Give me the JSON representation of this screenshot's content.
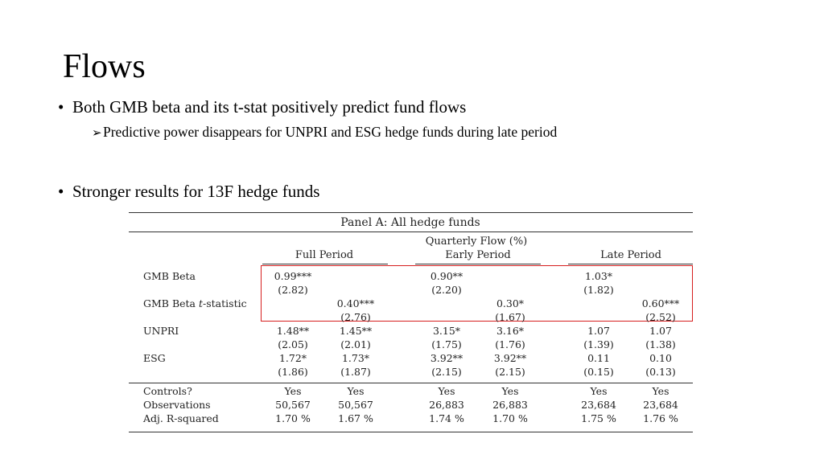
{
  "slide": {
    "title": "Flows",
    "bullets": [
      {
        "text": "Both GMB beta and its t-stat positively predict fund flows",
        "sub": "Predictive power disappears for UNPRI and ESG hedge funds during late period"
      },
      {
        "text": "Stronger results for 13F hedge funds"
      }
    ]
  },
  "table": {
    "panel_title": "Panel A: All hedge funds",
    "dependent_var": "Quarterly Flow (%)",
    "groups": [
      "Full Period",
      "Early Period",
      "Late Period"
    ],
    "rows": [
      {
        "label": "GMB Beta",
        "values": [
          "0.99***",
          "",
          "0.90**",
          "",
          "1.03*",
          ""
        ],
        "tstats": [
          "(2.82)",
          "",
          "(2.20)",
          "",
          "(1.82)",
          ""
        ]
      },
      {
        "label_prefix": "GMB Beta ",
        "label_italic": "t",
        "label_suffix": "-statistic",
        "values": [
          "",
          "0.40***",
          "",
          "0.30*",
          "",
          "0.60***"
        ],
        "tstats": [
          "",
          "(2.76)",
          "",
          "(1.67)",
          "",
          "(2.52)"
        ]
      },
      {
        "label": "UNPRI",
        "values": [
          "1.48**",
          "1.45**",
          "3.15*",
          "3.16*",
          "1.07",
          "1.07"
        ],
        "tstats": [
          "(2.05)",
          "(2.01)",
          "(1.75)",
          "(1.76)",
          "(1.39)",
          "(1.38)"
        ]
      },
      {
        "label": "ESG",
        "values": [
          "1.72*",
          "1.73*",
          "3.92**",
          "3.92**",
          "0.11",
          "0.10"
        ],
        "tstats": [
          "(1.86)",
          "(1.87)",
          "(2.15)",
          "(2.15)",
          "(0.15)",
          "(0.13)"
        ]
      }
    ],
    "footer_rows": [
      {
        "label": "Controls?",
        "values": [
          "Yes",
          "Yes",
          "Yes",
          "Yes",
          "Yes",
          "Yes"
        ]
      },
      {
        "label": "Observations",
        "values": [
          "50,567",
          "50,567",
          "26,883",
          "26,883",
          "23,684",
          "23,684"
        ]
      },
      {
        "label": "Adj. R-squared",
        "values": [
          "1.70 %",
          "1.67 %",
          "1.74 %",
          "1.70 %",
          "1.75 %",
          "1.76 %"
        ]
      }
    ]
  },
  "colors": {
    "highlight_box": "#d61f1f"
  }
}
